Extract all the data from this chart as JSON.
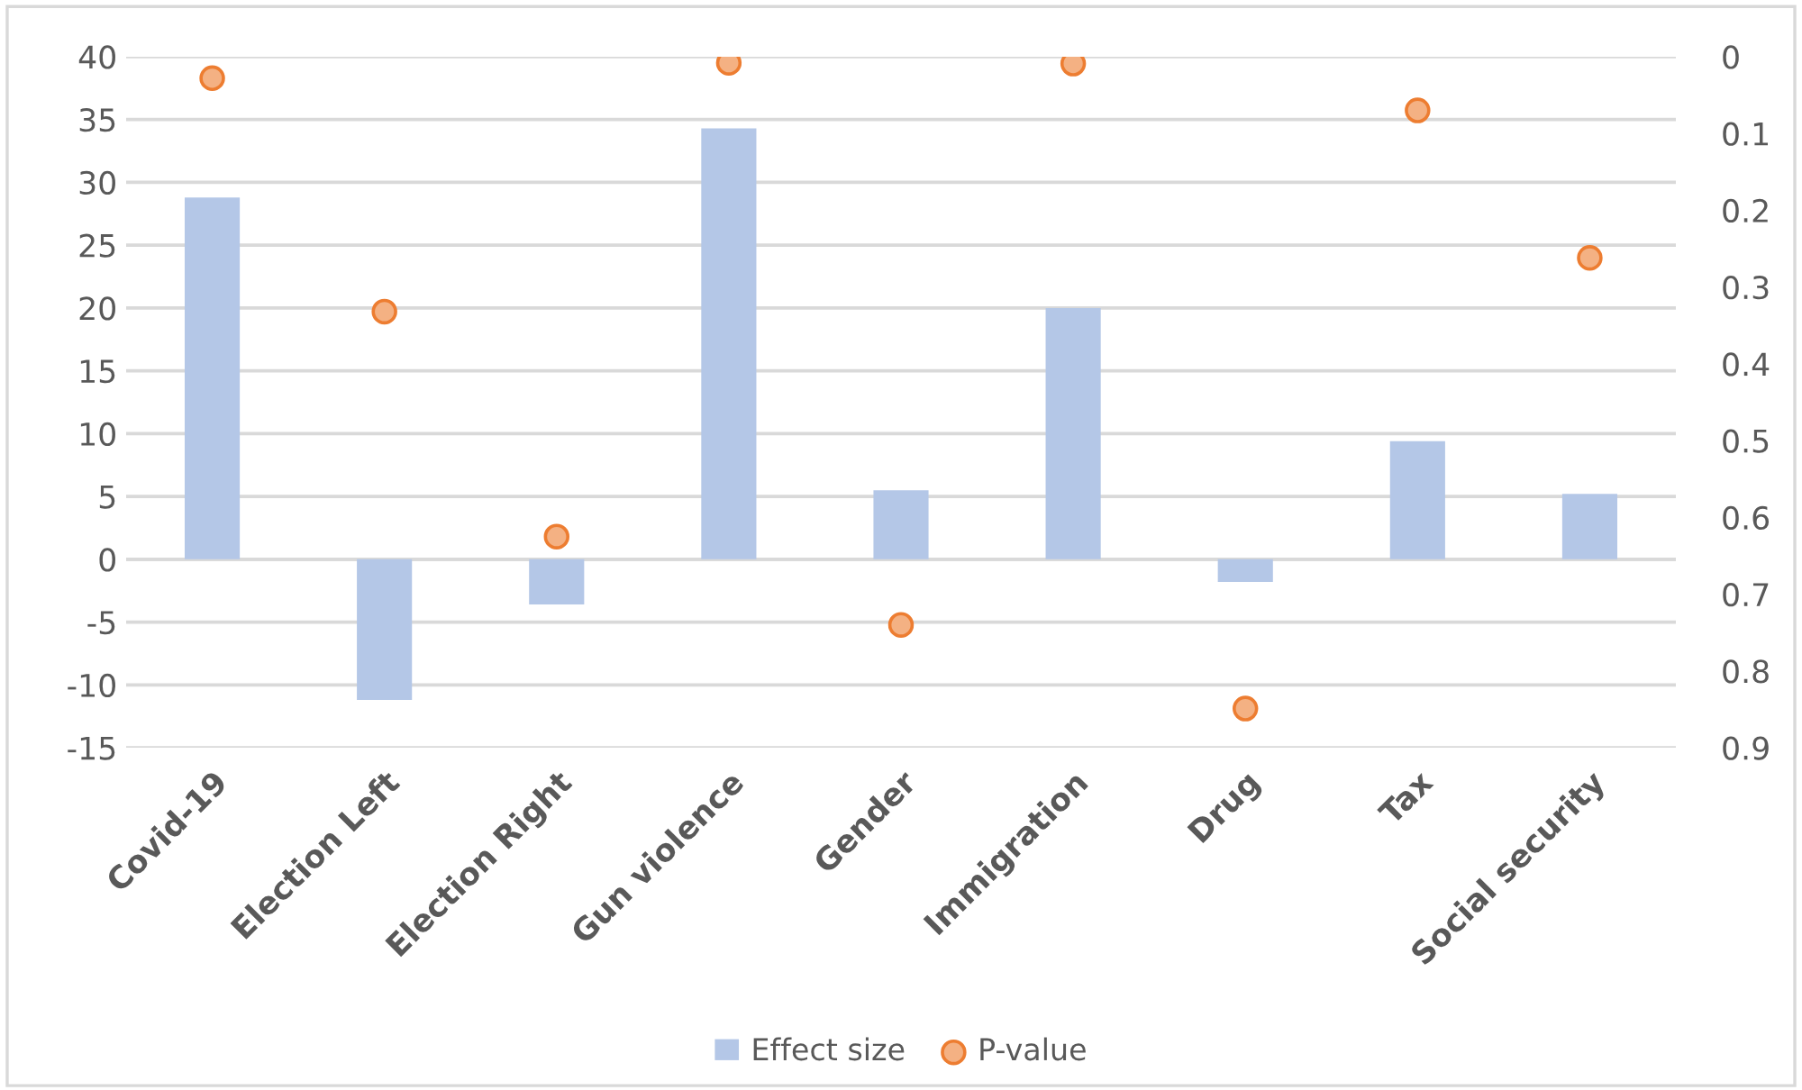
{
  "chart_data": {
    "type": "bar",
    "categories": [
      "Covid-19",
      "Election Left",
      "Election Right",
      "Gun violence",
      "Gender",
      "Immigration",
      "Drug",
      "Tax",
      "Social security"
    ],
    "series": [
      {
        "name": "Effect size",
        "color": "#b4c7e7",
        "values": [
          28.8,
          -11.2,
          -3.6,
          34.3,
          5.5,
          20.0,
          -1.8,
          9.4,
          5.2
        ]
      },
      {
        "name": "P-value",
        "type": "scatter",
        "axis": "y2",
        "color": "#f4b183",
        "values": [
          0.028,
          0.332,
          0.625,
          0.008,
          0.74,
          0.009,
          0.849,
          0.07,
          0.262
        ]
      }
    ],
    "ylim": [
      -15,
      40
    ],
    "yticks": [
      -15,
      -10,
      -5,
      0,
      5,
      10,
      15,
      20,
      25,
      30,
      35,
      40
    ],
    "y2lim": [
      0.9,
      0
    ],
    "y2ticks": [
      0,
      0.1,
      0.2,
      0.3,
      0.4,
      0.5,
      0.6,
      0.7,
      0.8,
      0.9
    ],
    "grid": "y",
    "legend": "bottom",
    "marker": "circle"
  }
}
